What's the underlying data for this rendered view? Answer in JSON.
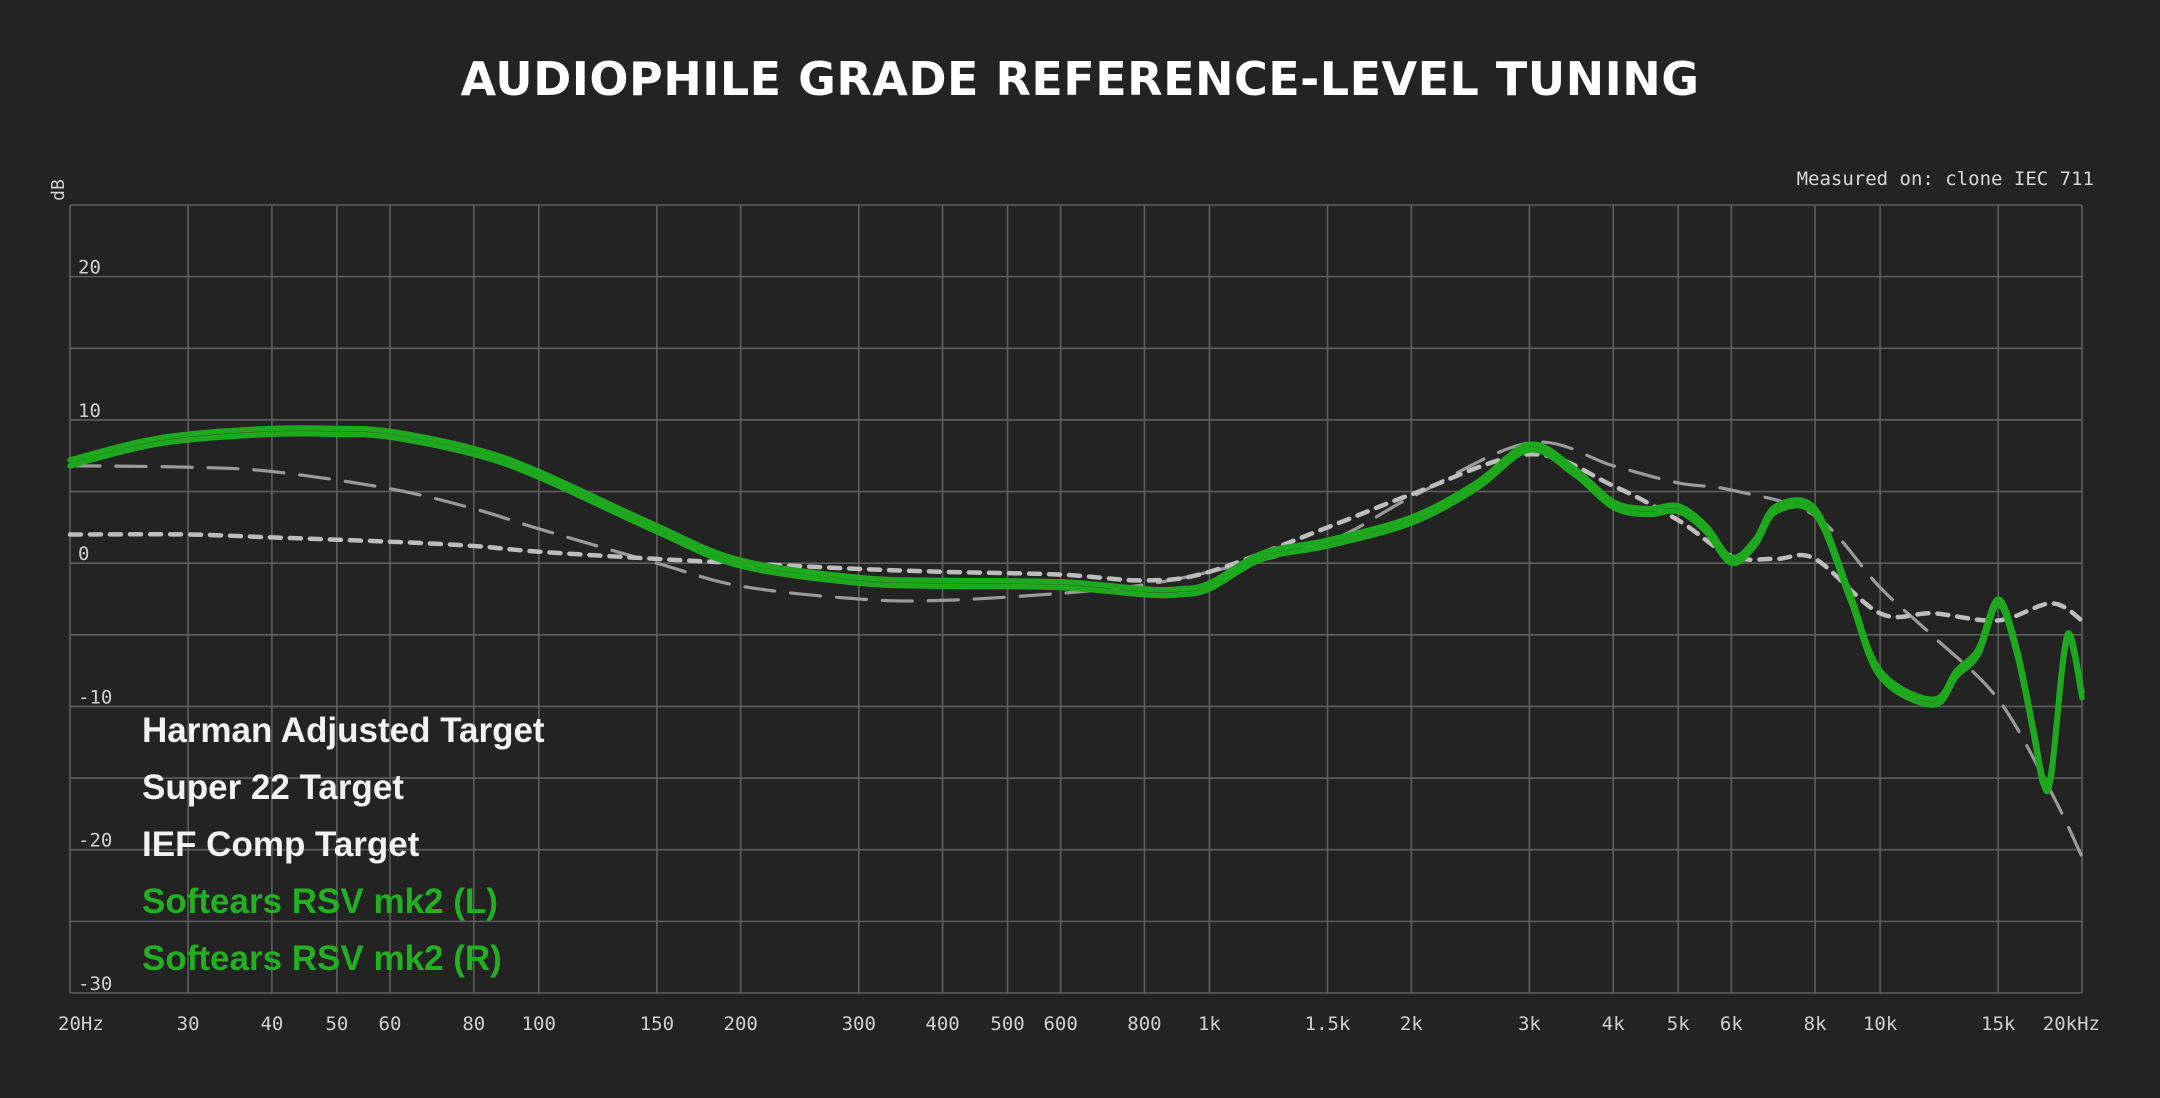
{
  "title": "AUDIOPHILE GRADE REFERENCE-LEVEL TUNING",
  "measurement_rig": "Measured on: clone IEC 711",
  "colors": {
    "background": "#232323",
    "grid": "#5e5e5e",
    "target_dashed": "#9a9a9a",
    "target_dotted": "#bdbdbd",
    "iem_green": "#1ea81e"
  },
  "legend": {
    "items": [
      {
        "label": "Harman Adjusted Target",
        "color": "#f2f2f2"
      },
      {
        "label": "Super 22 Target",
        "color": "#f2f2f2"
      },
      {
        "label": "IEF Comp Target",
        "color": "#f2f2f2"
      },
      {
        "label": "Softears RSV mk2 (L)",
        "color": "#22b022"
      },
      {
        "label": "Softears RSV mk2 (R)",
        "color": "#22b022"
      }
    ]
  },
  "chart_data": {
    "type": "line",
    "title": "AUDIOPHILE GRADE REFERENCE-LEVEL TUNING",
    "xlabel": "",
    "ylabel": "dB",
    "x_scale": "log",
    "xlim": [
      20,
      20000
    ],
    "ylim": [
      -30,
      25
    ],
    "grid": true,
    "legend_position": "bottom-left",
    "x_ticks": [
      20,
      30,
      40,
      50,
      60,
      80,
      100,
      150,
      200,
      300,
      400,
      500,
      600,
      800,
      1000,
      1500,
      2000,
      3000,
      4000,
      5000,
      6000,
      8000,
      10000,
      15000,
      20000
    ],
    "x_tick_labels": [
      "20Hz",
      "30",
      "40",
      "50",
      "60",
      "80",
      "100",
      "150",
      "200",
      "300",
      "400",
      "500",
      "600",
      "800",
      "1k",
      "1.5k",
      "2k",
      "3k",
      "4k",
      "5k",
      "6k",
      "8k",
      "10k",
      "15k",
      "20kHz"
    ],
    "y_ticks": [
      20,
      10,
      0,
      -10,
      -20,
      -30
    ],
    "y_tick_labels": [
      "20",
      "10",
      "0",
      "-10",
      "-20",
      "-30"
    ],
    "series": [
      {
        "name": "Harman Adjusted Target",
        "style": "long-dash",
        "x": [
          20,
          30,
          40,
          60,
          80,
          100,
          150,
          200,
          300,
          400,
          600,
          800,
          1000,
          1500,
          2000,
          3000,
          4000,
          5000,
          6000,
          8000,
          10000,
          12000,
          15000,
          18000,
          20000
        ],
        "y": [
          6.8,
          6.7,
          6.4,
          5.2,
          3.8,
          2.4,
          0.0,
          -1.6,
          -2.5,
          -2.6,
          -2.1,
          -1.5,
          -0.6,
          1.5,
          4.6,
          8.4,
          6.8,
          5.6,
          5.1,
          3.3,
          -1.7,
          -5.1,
          -9.5,
          -16.0,
          -20.5
        ]
      },
      {
        "name": "Super 22 Target",
        "style": "short-dash",
        "x": [
          20,
          30,
          40,
          60,
          80,
          100,
          150,
          200,
          300,
          400,
          600,
          800,
          1000,
          1500,
          2000,
          3000,
          4000,
          5000,
          6000,
          7000,
          8000,
          10000,
          12000,
          15000,
          18000,
          20000
        ],
        "y": [
          2.0,
          2.0,
          1.8,
          1.5,
          1.2,
          0.8,
          0.3,
          0.0,
          -0.4,
          -0.6,
          -0.8,
          -1.2,
          -0.6,
          2.5,
          4.8,
          7.6,
          5.4,
          3.0,
          0.5,
          0.3,
          0.3,
          -3.5,
          -3.5,
          -4.0,
          -2.8,
          -4.0
        ]
      },
      {
        "name": "IEF Comp Target",
        "style": "none",
        "x": [],
        "y": []
      },
      {
        "name": "Softears RSV mk2 (L)",
        "style": "solid",
        "x": [
          20,
          25,
          30,
          40,
          50,
          60,
          80,
          100,
          150,
          200,
          300,
          400,
          600,
          800,
          900,
          1000,
          1200,
          1500,
          2000,
          2500,
          3000,
          3500,
          4000,
          4500,
          5000,
          5500,
          6000,
          6500,
          7000,
          8000,
          9000,
          10000,
          12000,
          13000,
          14000,
          15000,
          16000,
          17000,
          17500,
          18000,
          19000,
          20000
        ],
        "y": [
          7.2,
          8.4,
          9.0,
          9.4,
          9.4,
          9.2,
          8.0,
          6.4,
          2.6,
          0.2,
          -1.0,
          -1.2,
          -1.3,
          -1.8,
          -1.8,
          -1.4,
          0.7,
          1.6,
          3.2,
          5.6,
          8.3,
          6.6,
          4.3,
          3.8,
          4.0,
          2.6,
          0.4,
          1.6,
          4.0,
          3.8,
          -2.0,
          -7.5,
          -9.5,
          -7.5,
          -6.0,
          -2.5,
          -6.0,
          -12.0,
          -15.0,
          -14.5,
          -5.0,
          -9.0
        ]
      },
      {
        "name": "Softears RSV mk2 (R)",
        "style": "solid",
        "x": [
          20,
          25,
          30,
          40,
          50,
          60,
          80,
          100,
          150,
          200,
          300,
          400,
          600,
          800,
          900,
          1000,
          1200,
          1500,
          2000,
          2500,
          3000,
          3500,
          4000,
          4500,
          5000,
          5500,
          6000,
          6500,
          7000,
          8000,
          9000,
          10000,
          12000,
          13000,
          14000,
          15000,
          16000,
          17000,
          17500,
          18000,
          19000,
          20000
        ],
        "y": [
          6.8,
          8.0,
          8.6,
          9.0,
          9.0,
          8.8,
          7.6,
          6.0,
          2.2,
          -0.2,
          -1.4,
          -1.6,
          -1.7,
          -2.2,
          -2.2,
          -1.8,
          0.3,
          1.2,
          2.8,
          5.2,
          7.9,
          6.2,
          3.9,
          3.4,
          3.6,
          2.2,
          0.0,
          1.2,
          3.6,
          3.4,
          -2.4,
          -7.9,
          -9.9,
          -7.9,
          -6.4,
          -2.9,
          -6.4,
          -12.4,
          -15.4,
          -14.9,
          -5.4,
          -9.4
        ]
      }
    ]
  }
}
